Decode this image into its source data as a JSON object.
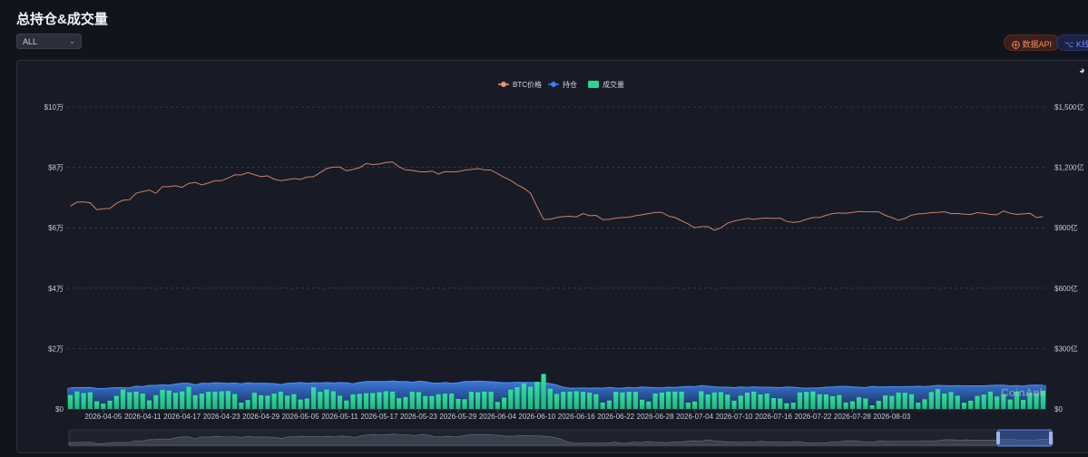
{
  "page": {
    "title": "总持仓&成交量",
    "filter": {
      "value": "ALL"
    },
    "buttons": {
      "api": "数据API",
      "kline": "K线 P"
    }
  },
  "watermark": "CoinAnk",
  "colors": {
    "price": "#e8937a",
    "oi": "#3d82f0",
    "volume": "#2fd58e",
    "background": "#181b25",
    "grid": "#3a3f4c"
  },
  "chart_data": {
    "type": "bar",
    "legend": [
      "BTC价格",
      "持仓",
      "成交量"
    ],
    "legend_placement": "top",
    "left_axis": {
      "ticks": [
        "$0",
        "$2万",
        "$4万",
        "$6万",
        "$8万",
        "$10万"
      ],
      "range": [
        0,
        100000
      ]
    },
    "right_axis": {
      "ticks": [
        "$0",
        "$300亿",
        "$600亿",
        "$900亿",
        "$1,200亿",
        "$1,500亿"
      ],
      "range": [
        0,
        150000000000
      ]
    },
    "x_labels": [
      "2026-04-05",
      "2026-04-11",
      "2026-04-17",
      "2026-04-23",
      "2026-04-29",
      "2026-05-05",
      "2026-05-11",
      "2026-05-17",
      "2026-05-23",
      "2026-05-29",
      "2026-06-04",
      "2026-06-10",
      "2026-06-16",
      "2026-06-22",
      "2026-06-28",
      "2026-07-04",
      "2026-07-10",
      "2026-07-16",
      "2026-07-22",
      "2026-07-28",
      "2026-08-03"
    ],
    "grid": true,
    "start_date": "2026-03-31",
    "volume_billion": [
      69,
      87,
      79,
      83,
      38,
      26,
      41,
      65,
      97,
      83,
      86,
      76,
      43,
      68,
      95,
      92,
      80,
      87,
      110,
      68,
      76,
      85,
      86,
      88,
      89,
      74,
      31,
      44,
      80,
      68,
      66,
      76,
      85,
      66,
      73,
      47,
      52,
      108,
      85,
      97,
      88,
      66,
      42,
      72,
      75,
      78,
      79,
      83,
      88,
      86,
      53,
      59,
      85,
      84,
      64,
      64,
      73,
      76,
      76,
      50,
      48,
      85,
      83,
      86,
      85,
      35,
      56,
      96,
      108,
      127,
      110,
      135,
      174,
      100,
      75,
      85,
      86,
      88,
      85,
      81,
      73,
      32,
      42,
      85,
      82,
      85,
      85,
      46,
      37,
      77,
      81,
      86,
      86,
      86,
      31,
      37,
      88,
      72,
      82,
      84,
      71,
      41,
      66,
      81,
      86,
      72,
      76,
      54,
      52,
      28,
      31,
      82,
      85,
      87,
      73,
      72,
      63,
      69,
      32,
      38,
      58,
      52,
      18,
      40,
      67,
      65,
      81,
      80,
      73,
      31,
      48,
      84,
      98,
      76,
      84,
      66,
      31,
      41,
      65,
      71,
      86,
      62,
      73,
      47,
      86,
      45,
      80,
      79,
      90
    ],
    "oi_billion": [
      106,
      106,
      106,
      107,
      102,
      101,
      104,
      106,
      106,
      105,
      113,
      111,
      117,
      117,
      120,
      118,
      124,
      128,
      128,
      120,
      128,
      127,
      130,
      129,
      127,
      129,
      125,
      130,
      127,
      128,
      127,
      126,
      121,
      128,
      129,
      131,
      128,
      130,
      129,
      131,
      129,
      131,
      130,
      125,
      132,
      136,
      137,
      136,
      137,
      139,
      136,
      136,
      133,
      138,
      135,
      129,
      128,
      131,
      128,
      130,
      136,
      137,
      138,
      137,
      135,
      133,
      130,
      131,
      133,
      132,
      132,
      131,
      130,
      126,
      119,
      108,
      103,
      103,
      104,
      103,
      104,
      103,
      107,
      103,
      103,
      107,
      105,
      109,
      107,
      106,
      105,
      108,
      107,
      110,
      112,
      111,
      116,
      113,
      110,
      108,
      108,
      106,
      109,
      107,
      110,
      108,
      108,
      107,
      106,
      109,
      108,
      105,
      103,
      104,
      105,
      108,
      109,
      112,
      112,
      110,
      108,
      106,
      112,
      110,
      110,
      111,
      110,
      111,
      111,
      113,
      111,
      114,
      117,
      116,
      115,
      116,
      115,
      115,
      115,
      115,
      117,
      118,
      118,
      115,
      116,
      114,
      118,
      119,
      118
    ],
    "btc_price": [
      67200,
      68500,
      68600,
      68300,
      66000,
      66300,
      66400,
      68100,
      69100,
      69300,
      71400,
      72000,
      72500,
      71400,
      73600,
      73600,
      73900,
      73400,
      74700,
      75000,
      74200,
      74800,
      75600,
      75600,
      76500,
      77500,
      77500,
      78300,
      77600,
      76900,
      77200,
      76100,
      75600,
      75900,
      76300,
      76000,
      76800,
      76900,
      78300,
      79600,
      80100,
      80100,
      78900,
      79300,
      79900,
      81300,
      80900,
      81100,
      81600,
      81800,
      80200,
      79200,
      79000,
      78600,
      78500,
      78800,
      77800,
      78600,
      78500,
      78600,
      79100,
      79300,
      79600,
      79200,
      79100,
      77900,
      76700,
      75700,
      74200,
      73100,
      71500,
      67000,
      62800,
      62800,
      63400,
      63700,
      63800,
      63600,
      64700,
      64000,
      64100,
      62700,
      62800,
      63200,
      63400,
      63500,
      64000,
      64300,
      64700,
      65100,
      65100,
      63900,
      63400,
      62300,
      61300,
      60000,
      60400,
      60400,
      59200,
      60000,
      61500,
      62200,
      62700,
      63100,
      62800,
      63100,
      63200,
      63100,
      63200,
      62100,
      61800,
      62000,
      62800,
      63400,
      63400,
      64100,
      64700,
      64900,
      64800,
      65100,
      65400,
      65300,
      65300,
      65300,
      64100,
      63400,
      62500,
      63100,
      64200,
      64600,
      64700,
      65000,
      65100,
      65300,
      64700,
      64700,
      64500,
      64400,
      65000,
      64800,
      64400,
      64300,
      65600,
      64800,
      64400,
      64600,
      64800,
      63400,
      63700
    ]
  }
}
